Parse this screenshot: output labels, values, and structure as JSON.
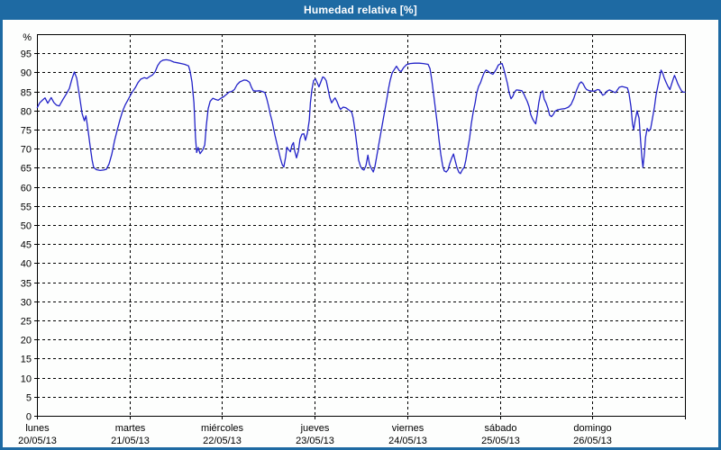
{
  "title": "Humedad relativa [%]",
  "colors": {
    "frame": "#1e6aa3",
    "title_text": "#ffffff",
    "panel_bg": "#fdfefd",
    "plot_border": "#000000",
    "grid": "#000000",
    "label": "#000000",
    "line": "#2323c8"
  },
  "chart_data": {
    "type": "line",
    "title": "Humedad relativa [%]",
    "y_unit_label": "%",
    "ylim": [
      0,
      100
    ],
    "y_ticks": [
      0,
      5,
      10,
      15,
      20,
      25,
      30,
      35,
      40,
      45,
      50,
      55,
      60,
      65,
      70,
      75,
      80,
      85,
      90,
      95
    ],
    "grid": "dashed",
    "legend": "none",
    "x_hours_range": [
      0,
      168
    ],
    "x_days": [
      {
        "name": "lunes",
        "date": "20/05/13"
      },
      {
        "name": "martes",
        "date": "21/05/13"
      },
      {
        "name": "miércoles",
        "date": "22/05/13"
      },
      {
        "name": "jueves",
        "date": "23/05/13"
      },
      {
        "name": "viernes",
        "date": "24/05/13"
      },
      {
        "name": "sábado",
        "date": "25/05/13"
      },
      {
        "name": "domingo",
        "date": "26/05/13"
      }
    ],
    "series": [
      {
        "name": "Humedad relativa",
        "color": "#2323c8",
        "points": [
          [
            0.1,
            80.8
          ],
          [
            0.7,
            82
          ],
          [
            1.4,
            82.7
          ],
          [
            2.1,
            83.3
          ],
          [
            2.8,
            81.9
          ],
          [
            3.7,
            83.4
          ],
          [
            4.4,
            82.1
          ],
          [
            5.1,
            81.4
          ],
          [
            5.8,
            81.2
          ],
          [
            6.8,
            83
          ],
          [
            7.7,
            84.5
          ],
          [
            8.4,
            85.8
          ],
          [
            9.1,
            88.3
          ],
          [
            9.7,
            90.1
          ],
          [
            10.3,
            88.5
          ],
          [
            11,
            84
          ],
          [
            11.7,
            79.2
          ],
          [
            12.3,
            77.3
          ],
          [
            12.7,
            78.6
          ],
          [
            13.3,
            74.5
          ],
          [
            13.8,
            70.5
          ],
          [
            14.3,
            67
          ],
          [
            14.7,
            65.1
          ],
          [
            15.4,
            64.5
          ],
          [
            16.4,
            64.3
          ],
          [
            17.3,
            64.4
          ],
          [
            18,
            64.6
          ],
          [
            18.7,
            66
          ],
          [
            19.4,
            68.5
          ],
          [
            20.1,
            72
          ],
          [
            20.8,
            74.8
          ],
          [
            21.5,
            77.5
          ],
          [
            22.2,
            79.8
          ],
          [
            22.9,
            81.5
          ],
          [
            23.6,
            82.8
          ],
          [
            24.5,
            84.5
          ],
          [
            25.5,
            86
          ],
          [
            26.2,
            87.3
          ],
          [
            26.9,
            88.2
          ],
          [
            27.8,
            88.6
          ],
          [
            28.5,
            88.4
          ],
          [
            29.2,
            88.9
          ],
          [
            29.9,
            89.3
          ],
          [
            30.6,
            90.1
          ],
          [
            31.3,
            91.8
          ],
          [
            32,
            92.8
          ],
          [
            32.7,
            93.2
          ],
          [
            33.6,
            93.3
          ],
          [
            34.6,
            93.1
          ],
          [
            35.5,
            92.7
          ],
          [
            36.5,
            92.5
          ],
          [
            37.4,
            92.3
          ],
          [
            38.3,
            92.1
          ],
          [
            39.3,
            91.7
          ],
          [
            39.7,
            90.3
          ],
          [
            40.2,
            87.5
          ],
          [
            40.7,
            82
          ],
          [
            41.1,
            73
          ],
          [
            41.4,
            69
          ],
          [
            41.8,
            70.3
          ],
          [
            42.3,
            68.7
          ],
          [
            43,
            69.7
          ],
          [
            43.5,
            71
          ],
          [
            43.9,
            76
          ],
          [
            44.4,
            80.5
          ],
          [
            44.9,
            82.4
          ],
          [
            45.6,
            83.2
          ],
          [
            46.3,
            82.9
          ],
          [
            47,
            82.7
          ],
          [
            47.7,
            83.2
          ],
          [
            48.4,
            83.6
          ],
          [
            49.1,
            84.2
          ],
          [
            49.8,
            84.8
          ],
          [
            50.5,
            85
          ],
          [
            51.2,
            85.5
          ],
          [
            51.9,
            86.8
          ],
          [
            52.6,
            87.5
          ],
          [
            53.3,
            87.8
          ],
          [
            53.7,
            88
          ],
          [
            54.4,
            87.9
          ],
          [
            55.1,
            87.4
          ],
          [
            55.6,
            86.1
          ],
          [
            56.1,
            85.2
          ],
          [
            56.8,
            85.1
          ],
          [
            57.7,
            85.2
          ],
          [
            58.4,
            85
          ],
          [
            59.1,
            84.7
          ],
          [
            59.6,
            83
          ],
          [
            60.1,
            81
          ],
          [
            60.5,
            79
          ],
          [
            61,
            77
          ],
          [
            61.7,
            73.5
          ],
          [
            62.4,
            70.5
          ],
          [
            63.1,
            67.5
          ],
          [
            63.6,
            65.8
          ],
          [
            64,
            65.2
          ],
          [
            64.5,
            67.9
          ],
          [
            64.8,
            70.4
          ],
          [
            65.2,
            69.8
          ],
          [
            65.7,
            69.2
          ],
          [
            66.1,
            70.9
          ],
          [
            66.5,
            71.6
          ],
          [
            66.8,
            69.5
          ],
          [
            67.3,
            67.6
          ],
          [
            67.8,
            69.5
          ],
          [
            68.2,
            72.5
          ],
          [
            68.7,
            73.8
          ],
          [
            69.2,
            73.9
          ],
          [
            69.6,
            72.2
          ],
          [
            70.1,
            74
          ],
          [
            70.6,
            77.5
          ],
          [
            70.9,
            82
          ],
          [
            71.3,
            85.5
          ],
          [
            71.7,
            87.8
          ],
          [
            72.2,
            88.3
          ],
          [
            72.7,
            87.2
          ],
          [
            73.1,
            86.2
          ],
          [
            73.6,
            87.5
          ],
          [
            74.1,
            88.8
          ],
          [
            74.5,
            88.6
          ],
          [
            75,
            87.8
          ],
          [
            75.5,
            85.5
          ],
          [
            75.9,
            83.5
          ],
          [
            76.4,
            82
          ],
          [
            76.9,
            82.8
          ],
          [
            77.3,
            83.3
          ],
          [
            77.8,
            82.3
          ],
          [
            78.3,
            81
          ],
          [
            78.7,
            80.3
          ],
          [
            79.4,
            80.9
          ],
          [
            80.1,
            80.7
          ],
          [
            80.8,
            80.2
          ],
          [
            81.6,
            79.6
          ],
          [
            82,
            78
          ],
          [
            82.5,
            74.5
          ],
          [
            83,
            70.5
          ],
          [
            83.4,
            67
          ],
          [
            83.9,
            65.3
          ],
          [
            84.4,
            64.6
          ],
          [
            84.8,
            64.4
          ],
          [
            85.3,
            65.6
          ],
          [
            85.8,
            68.3
          ],
          [
            86.2,
            66
          ],
          [
            86.7,
            64.8
          ],
          [
            87.2,
            63.9
          ],
          [
            87.6,
            65.2
          ],
          [
            88.1,
            68
          ],
          [
            88.6,
            71
          ],
          [
            89.3,
            75
          ],
          [
            90,
            79
          ],
          [
            90.7,
            83
          ],
          [
            91.1,
            85.5
          ],
          [
            91.6,
            88
          ],
          [
            92.1,
            89.9
          ],
          [
            92.8,
            91
          ],
          [
            93.2,
            91.6
          ],
          [
            93.9,
            90.5
          ],
          [
            94.4,
            90.2
          ],
          [
            95.1,
            91.3
          ],
          [
            95.8,
            92
          ],
          [
            96.7,
            92.3
          ],
          [
            97.9,
            92.4
          ],
          [
            99.1,
            92.4
          ],
          [
            100.2,
            92.3
          ],
          [
            101.4,
            92.1
          ],
          [
            101.9,
            91
          ],
          [
            102.3,
            88.5
          ],
          [
            102.8,
            84.5
          ],
          [
            103.3,
            80.5
          ],
          [
            103.8,
            76.5
          ],
          [
            104.2,
            72.5
          ],
          [
            104.7,
            68.5
          ],
          [
            105.2,
            65.5
          ],
          [
            105.6,
            64.2
          ],
          [
            106.1,
            63.9
          ],
          [
            106.6,
            64.5
          ],
          [
            107,
            66
          ],
          [
            107.5,
            67.5
          ],
          [
            108,
            68.6
          ],
          [
            108.4,
            67
          ],
          [
            108.9,
            65
          ],
          [
            109.4,
            63.8
          ],
          [
            109.8,
            63.5
          ],
          [
            110.3,
            64.5
          ],
          [
            110.8,
            65.2
          ],
          [
            111.2,
            67
          ],
          [
            111.7,
            70
          ],
          [
            112.2,
            73
          ],
          [
            112.6,
            76.5
          ],
          [
            113.1,
            79.5
          ],
          [
            113.6,
            82
          ],
          [
            114,
            84.5
          ],
          [
            114.5,
            86.3
          ],
          [
            115,
            87.3
          ],
          [
            115.4,
            88.5
          ],
          [
            115.9,
            89.8
          ],
          [
            116.4,
            90.6
          ],
          [
            116.8,
            90.4
          ],
          [
            117.3,
            90
          ],
          [
            117.8,
            89.7
          ],
          [
            118.2,
            89.5
          ],
          [
            118.7,
            90.2
          ],
          [
            119.2,
            91
          ],
          [
            119.6,
            91.9
          ],
          [
            120.1,
            92.2
          ],
          [
            120.6,
            92.3
          ],
          [
            121,
            91
          ],
          [
            121.5,
            89
          ],
          [
            122,
            87
          ],
          [
            122.4,
            84.8
          ],
          [
            122.9,
            83.1
          ],
          [
            123.4,
            83.8
          ],
          [
            123.8,
            84.8
          ],
          [
            124.3,
            85.4
          ],
          [
            125,
            85.3
          ],
          [
            125.7,
            85.2
          ],
          [
            126.2,
            84.4
          ],
          [
            126.6,
            83.5
          ],
          [
            127.1,
            82.4
          ],
          [
            127.6,
            81
          ],
          [
            128,
            79
          ],
          [
            128.5,
            77.8
          ],
          [
            129,
            76.9
          ],
          [
            129.3,
            76.5
          ],
          [
            129.7,
            79
          ],
          [
            130.1,
            82
          ],
          [
            130.6,
            84.5
          ],
          [
            131.1,
            85.2
          ],
          [
            131.5,
            83
          ],
          [
            132,
            82
          ],
          [
            132.5,
            80.5
          ],
          [
            132.9,
            78.8
          ],
          [
            133.4,
            78.4
          ],
          [
            133.9,
            79
          ],
          [
            134.3,
            79.8
          ],
          [
            135,
            80.2
          ],
          [
            136,
            80.4
          ],
          [
            136.9,
            80.5
          ],
          [
            137.8,
            80.9
          ],
          [
            138.5,
            81.6
          ],
          [
            139.2,
            83.2
          ],
          [
            139.9,
            85.3
          ],
          [
            140.6,
            87
          ],
          [
            141.1,
            87.5
          ],
          [
            141.6,
            87
          ],
          [
            142.1,
            86
          ],
          [
            142.5,
            85.5
          ],
          [
            143.2,
            85.2
          ],
          [
            143.9,
            85.1
          ],
          [
            144.6,
            85.1
          ],
          [
            145.3,
            85.5
          ],
          [
            145.8,
            85.4
          ],
          [
            146.3,
            84.6
          ],
          [
            146.7,
            84
          ],
          [
            147.2,
            84.3
          ],
          [
            147.7,
            85
          ],
          [
            148.4,
            85.4
          ],
          [
            149.1,
            85.1
          ],
          [
            149.6,
            84.8
          ],
          [
            150,
            84.7
          ],
          [
            150.5,
            85.4
          ],
          [
            151,
            86.1
          ],
          [
            151.7,
            86.3
          ],
          [
            152.4,
            86.1
          ],
          [
            153.1,
            85.9
          ],
          [
            153.5,
            84.5
          ],
          [
            154,
            81
          ],
          [
            154.4,
            76.5
          ],
          [
            154.7,
            75
          ],
          [
            155.1,
            77.5
          ],
          [
            155.6,
            79.9
          ],
          [
            156.1,
            78
          ],
          [
            156.5,
            72
          ],
          [
            156.9,
            67
          ],
          [
            157.1,
            65.1
          ],
          [
            157.5,
            69
          ],
          [
            157.8,
            73
          ],
          [
            158.2,
            75.3
          ],
          [
            158.6,
            74.6
          ],
          [
            159.1,
            75.2
          ],
          [
            159.6,
            78
          ],
          [
            160.1,
            81
          ],
          [
            160.5,
            84
          ],
          [
            161,
            86.5
          ],
          [
            161.5,
            89
          ],
          [
            161.8,
            90.6
          ],
          [
            162.2,
            89.9
          ],
          [
            162.6,
            88.6
          ],
          [
            163.1,
            87.4
          ],
          [
            163.6,
            86.3
          ],
          [
            164.1,
            85.5
          ],
          [
            164.5,
            86.8
          ],
          [
            165,
            88.4
          ],
          [
            165.3,
            89.2
          ],
          [
            165.7,
            88.2
          ],
          [
            166.1,
            87.1
          ],
          [
            166.6,
            86.1
          ],
          [
            167.1,
            85.2
          ],
          [
            167.5,
            84.8
          ],
          [
            168,
            84.8
          ]
        ]
      }
    ]
  }
}
